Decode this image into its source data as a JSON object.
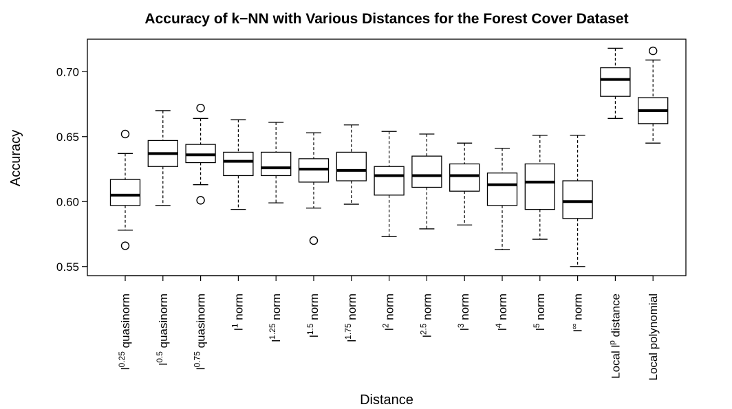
{
  "chart_data": {
    "type": "boxplot",
    "title": "Accuracy of k−NN with Various Distances for the Forest Cover Dataset",
    "xlabel": "Distance",
    "ylabel": "Accuracy",
    "ylim": [
      0.543,
      0.725
    ],
    "yticks": [
      "0.55",
      "0.60",
      "0.65",
      "0.70"
    ],
    "grid": false,
    "categories": [
      {
        "base": "l",
        "sup": "0.25",
        "suffix": " quasinorm"
      },
      {
        "base": "l",
        "sup": "0.5",
        "suffix": " quasinorm"
      },
      {
        "base": "l",
        "sup": "0.75",
        "suffix": " quasinorm"
      },
      {
        "base": "l",
        "sup": "1",
        "suffix": " norm"
      },
      {
        "base": "l",
        "sup": "1.25",
        "suffix": " norm"
      },
      {
        "base": "l",
        "sup": "1.5",
        "suffix": " norm"
      },
      {
        "base": "l",
        "sup": "1.75",
        "suffix": " norm"
      },
      {
        "base": "l",
        "sup": "2",
        "suffix": " norm"
      },
      {
        "base": "l",
        "sup": "2.5",
        "suffix": " norm"
      },
      {
        "base": "l",
        "sup": "3",
        "suffix": " norm"
      },
      {
        "base": "l",
        "sup": "4",
        "suffix": " norm"
      },
      {
        "base": "l",
        "sup": "5",
        "suffix": " norm"
      },
      {
        "base": "l",
        "sup": "∞",
        "suffix": " norm"
      },
      {
        "base": "Local l",
        "sup": "p",
        "suffix": " distance"
      },
      {
        "base": "Local polynomial",
        "sup": "",
        "suffix": ""
      }
    ],
    "boxes": [
      {
        "whisker_low": 0.578,
        "q1": 0.597,
        "median": 0.605,
        "q3": 0.617,
        "whisker_high": 0.637,
        "outliers": [
          0.652,
          0.566
        ]
      },
      {
        "whisker_low": 0.597,
        "q1": 0.627,
        "median": 0.637,
        "q3": 0.647,
        "whisker_high": 0.67,
        "outliers": []
      },
      {
        "whisker_low": 0.613,
        "q1": 0.63,
        "median": 0.636,
        "q3": 0.644,
        "whisker_high": 0.664,
        "outliers": [
          0.672,
          0.601
        ]
      },
      {
        "whisker_low": 0.594,
        "q1": 0.62,
        "median": 0.631,
        "q3": 0.638,
        "whisker_high": 0.663,
        "outliers": []
      },
      {
        "whisker_low": 0.599,
        "q1": 0.62,
        "median": 0.626,
        "q3": 0.638,
        "whisker_high": 0.661,
        "outliers": []
      },
      {
        "whisker_low": 0.595,
        "q1": 0.615,
        "median": 0.625,
        "q3": 0.633,
        "whisker_high": 0.653,
        "outliers": [
          0.57
        ]
      },
      {
        "whisker_low": 0.598,
        "q1": 0.616,
        "median": 0.624,
        "q3": 0.638,
        "whisker_high": 0.659,
        "outliers": []
      },
      {
        "whisker_low": 0.573,
        "q1": 0.605,
        "median": 0.62,
        "q3": 0.627,
        "whisker_high": 0.654,
        "outliers": []
      },
      {
        "whisker_low": 0.579,
        "q1": 0.611,
        "median": 0.62,
        "q3": 0.635,
        "whisker_high": 0.652,
        "outliers": []
      },
      {
        "whisker_low": 0.582,
        "q1": 0.608,
        "median": 0.62,
        "q3": 0.629,
        "whisker_high": 0.645,
        "outliers": []
      },
      {
        "whisker_low": 0.563,
        "q1": 0.597,
        "median": 0.613,
        "q3": 0.622,
        "whisker_high": 0.641,
        "outliers": []
      },
      {
        "whisker_low": 0.571,
        "q1": 0.594,
        "median": 0.615,
        "q3": 0.629,
        "whisker_high": 0.651,
        "outliers": []
      },
      {
        "whisker_low": 0.55,
        "q1": 0.587,
        "median": 0.6,
        "q3": 0.616,
        "whisker_high": 0.651,
        "outliers": []
      },
      {
        "whisker_low": 0.664,
        "q1": 0.681,
        "median": 0.694,
        "q3": 0.703,
        "whisker_high": 0.718,
        "outliers": []
      },
      {
        "whisker_low": 0.645,
        "q1": 0.66,
        "median": 0.67,
        "q3": 0.68,
        "whisker_high": 0.709,
        "outliers": [
          0.716
        ]
      }
    ]
  }
}
